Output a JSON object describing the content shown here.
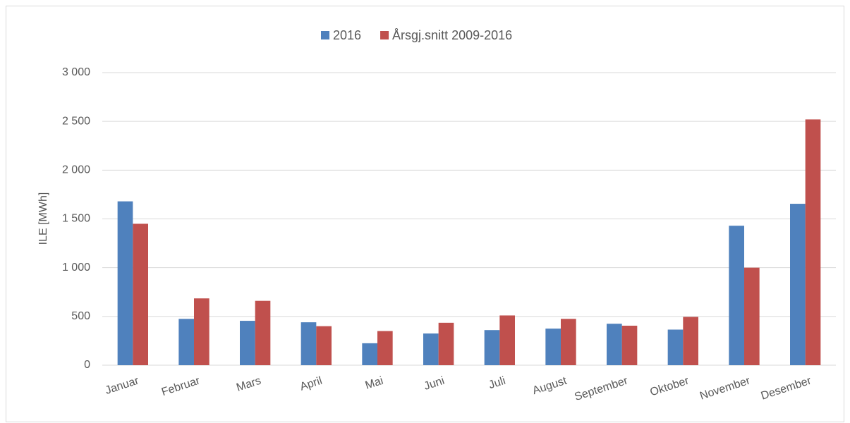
{
  "chart_data": {
    "type": "bar",
    "y_label": "ILE [MWh]",
    "categories": [
      "Januar",
      "Februar",
      "Mars",
      "April",
      "Mai",
      "Juni",
      "Juli",
      "August",
      "September",
      "Oktober",
      "November",
      "Desember"
    ],
    "series": [
      {
        "name": "2016",
        "color": "#4f81bd",
        "values": [
          1680,
          475,
          455,
          440,
          225,
          325,
          360,
          375,
          425,
          365,
          1430,
          1655
        ]
      },
      {
        "name": "Årsgj.snitt 2009-2016",
        "color": "#c0504d",
        "values": [
          1450,
          685,
          660,
          400,
          350,
          435,
          510,
          475,
          405,
          495,
          1000,
          2520
        ]
      }
    ],
    "ylim": [
      0,
      3000
    ],
    "yticks": [
      0,
      500,
      {
        "value": 1000,
        "label": "1 000"
      },
      {
        "value": 1500,
        "label": "1 500"
      },
      {
        "value": 2000,
        "label": "2 000"
      },
      {
        "value": 2500,
        "label": "2 500"
      },
      {
        "value": 3000,
        "label": "3 000"
      }
    ],
    "grid": true,
    "legend": "top"
  }
}
